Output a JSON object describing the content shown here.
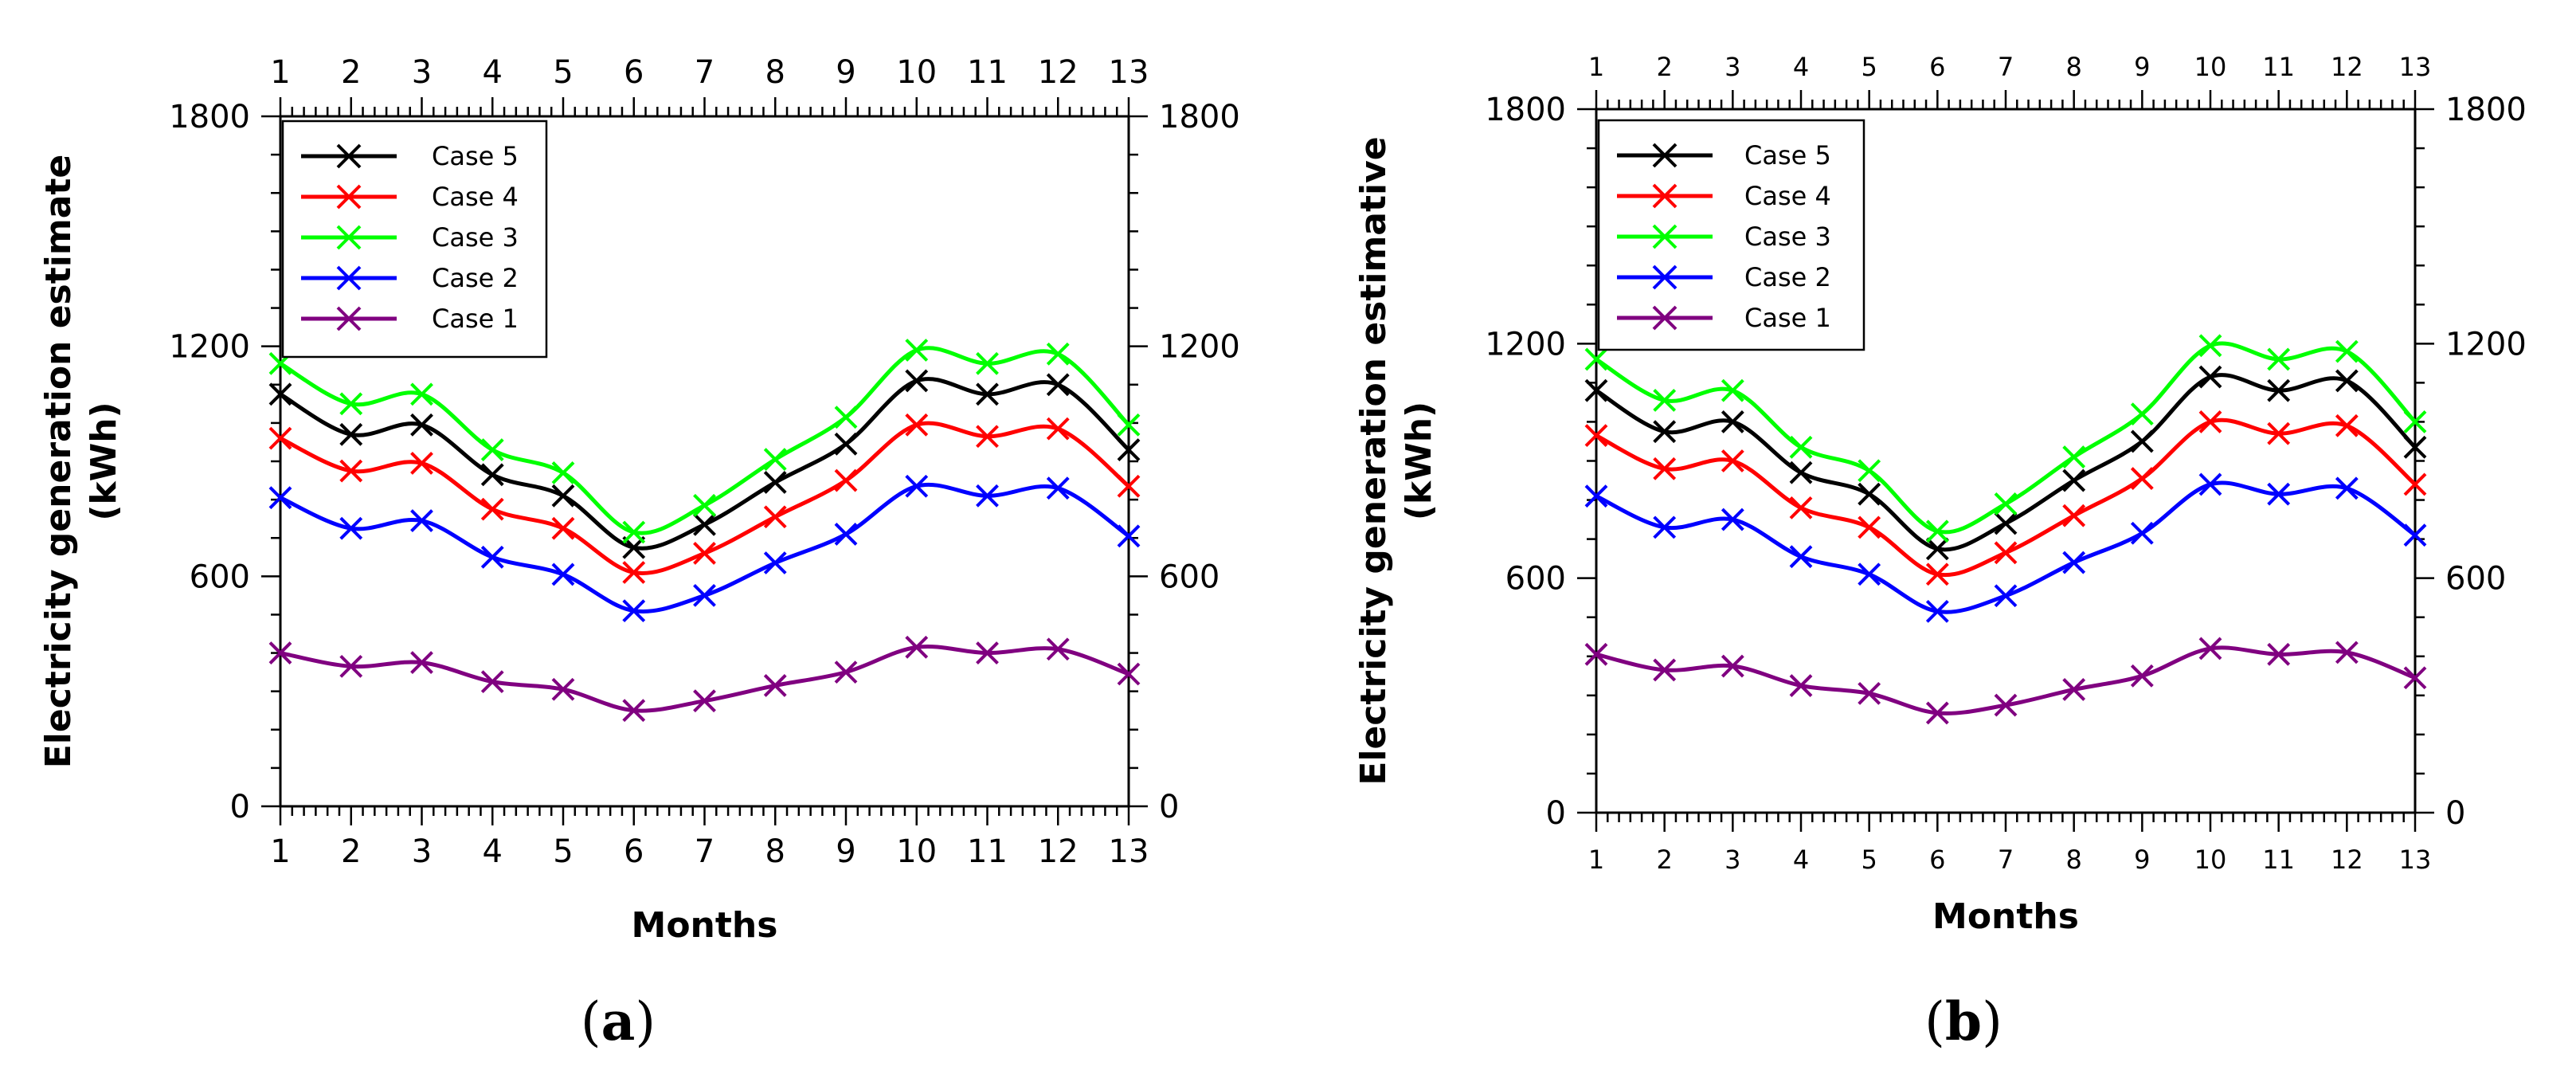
{
  "chart_data": [
    {
      "type": "line",
      "panel": "a",
      "panel_label": "(a)",
      "panel_letter": "a",
      "x": [
        1,
        2,
        3,
        4,
        5,
        6,
        7,
        8,
        9,
        10,
        11,
        12,
        13
      ],
      "x_tick_labels": [
        "1",
        "2",
        "3",
        "4",
        "5",
        "6",
        "7",
        "8",
        "9",
        "10",
        "11",
        "12",
        "13"
      ],
      "xlabel": "Months",
      "ylabel_line1": "Electricity generation estimate",
      "ylabel_line2": "(kWh)",
      "ylim": [
        0,
        1800
      ],
      "y_ticks": [
        0,
        600,
        1200,
        1800
      ],
      "y_tick_labels": [
        "0",
        "600",
        "1200",
        "1800"
      ],
      "legend_position": "top-left",
      "series": [
        {
          "name": "Case 5",
          "color": "#000000",
          "values": [
            1075,
            970,
            995,
            865,
            810,
            675,
            735,
            845,
            945,
            1110,
            1075,
            1100,
            930
          ]
        },
        {
          "name": "Case 4",
          "color": "#ff0000",
          "values": [
            960,
            875,
            895,
            775,
            725,
            610,
            660,
            755,
            850,
            995,
            965,
            985,
            835
          ]
        },
        {
          "name": "Case 3",
          "color": "#00ff00",
          "values": [
            1155,
            1050,
            1075,
            930,
            870,
            715,
            785,
            905,
            1015,
            1190,
            1155,
            1180,
            995
          ]
        },
        {
          "name": "Case 2",
          "color": "#0000ff",
          "values": [
            805,
            725,
            745,
            650,
            605,
            510,
            550,
            635,
            710,
            835,
            810,
            830,
            705
          ]
        },
        {
          "name": "Case 1",
          "color": "#800080",
          "values": [
            400,
            365,
            375,
            325,
            305,
            250,
            275,
            315,
            350,
            415,
            400,
            410,
            345
          ]
        }
      ]
    },
    {
      "type": "line",
      "panel": "b",
      "panel_label": "(b)",
      "panel_letter": "b",
      "x": [
        1,
        2,
        3,
        4,
        5,
        6,
        7,
        8,
        9,
        10,
        11,
        12,
        13
      ],
      "x_tick_labels": [
        "1",
        "2",
        "3",
        "4",
        "5",
        "6",
        "7",
        "8",
        "9",
        "10",
        "11",
        "12",
        "13"
      ],
      "xlabel": "Months",
      "ylabel_line1": "Electricity generation estimative",
      "ylabel_line2": "(kWh)",
      "ylim": [
        0,
        1800
      ],
      "y_ticks": [
        0,
        600,
        1200,
        1800
      ],
      "y_tick_labels": [
        "0",
        "600",
        "1200",
        "1800"
      ],
      "legend_position": "top-left",
      "series": [
        {
          "name": "Case 5",
          "color": "#000000",
          "values": [
            1080,
            975,
            1000,
            870,
            815,
            675,
            740,
            850,
            950,
            1115,
            1080,
            1105,
            935
          ]
        },
        {
          "name": "Case 4",
          "color": "#ff0000",
          "values": [
            965,
            880,
            900,
            780,
            730,
            610,
            665,
            760,
            855,
            1000,
            970,
            990,
            840
          ]
        },
        {
          "name": "Case 3",
          "color": "#00ff00",
          "values": [
            1160,
            1055,
            1080,
            935,
            875,
            720,
            790,
            910,
            1020,
            1195,
            1160,
            1180,
            1000
          ]
        },
        {
          "name": "Case 2",
          "color": "#0000ff",
          "values": [
            810,
            730,
            750,
            655,
            610,
            515,
            555,
            640,
            715,
            840,
            815,
            830,
            710
          ]
        },
        {
          "name": "Case 1",
          "color": "#800080",
          "values": [
            405,
            365,
            375,
            325,
            305,
            255,
            275,
            315,
            350,
            420,
            405,
            410,
            345
          ]
        }
      ]
    }
  ]
}
